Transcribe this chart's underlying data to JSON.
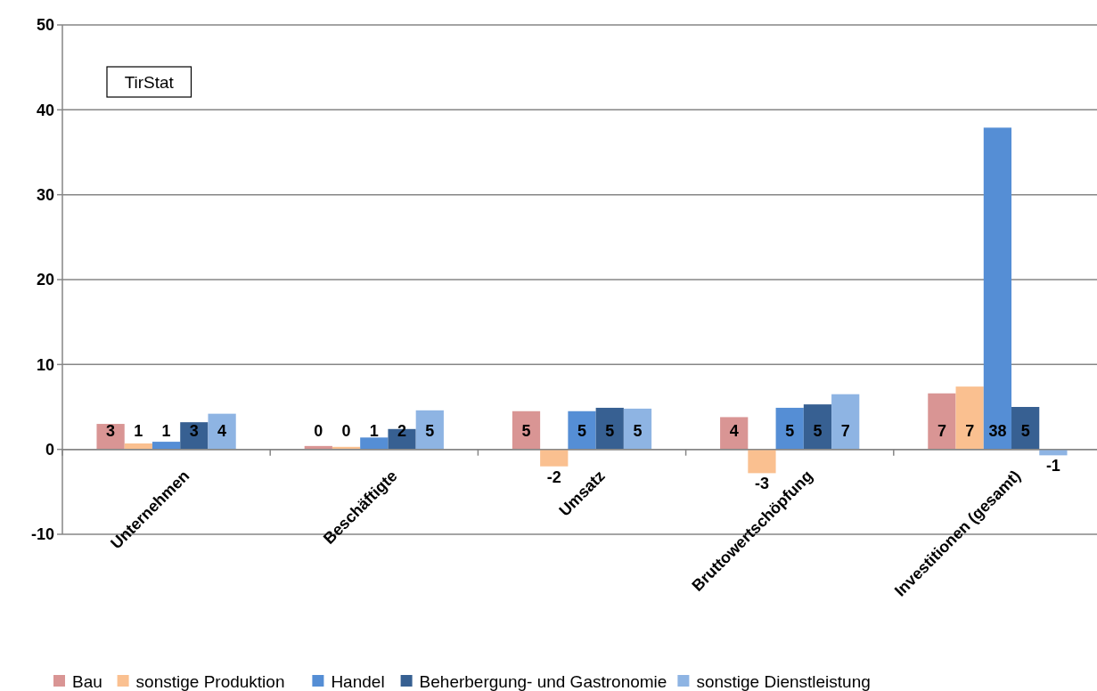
{
  "chart_data": {
    "type": "bar",
    "categories": [
      "Unternehmen",
      "Beschäftigte",
      "Umsatz",
      "Bruttowertschöpfung",
      "Investitionen (gesamt)"
    ],
    "series": [
      {
        "name": "Bau",
        "color": "#d99594",
        "values": [
          3.0,
          0.4,
          4.5,
          3.8,
          6.6
        ],
        "value_labels": [
          "3",
          "0",
          "5",
          "4",
          "7"
        ]
      },
      {
        "name": "sonstige Produktion",
        "color": "#fac090",
        "values": [
          0.7,
          0.3,
          -2.0,
          -2.8,
          7.4
        ],
        "value_labels": [
          "1",
          "0",
          "-2",
          "-3",
          "7"
        ]
      },
      {
        "name": "Handel",
        "color": "#558ed5",
        "values": [
          0.9,
          1.4,
          4.5,
          4.9,
          37.9
        ],
        "value_labels": [
          "1",
          "1",
          "5",
          "5",
          "38"
        ]
      },
      {
        "name": "Beherbergung- und Gastronomie",
        "color": "#376092",
        "values": [
          3.2,
          2.4,
          4.9,
          5.3,
          5.0
        ],
        "value_labels": [
          "3",
          "2",
          "5",
          "5",
          "5"
        ]
      },
      {
        "name": "sonstige Dienstleistung",
        "color": "#8eb4e3",
        "values": [
          4.2,
          4.6,
          4.8,
          6.5,
          -0.7
        ],
        "value_labels": [
          "4",
          "5",
          "5",
          "7",
          "-1"
        ]
      }
    ],
    "ylim": [
      -10,
      50
    ],
    "yticks": [
      -10,
      0,
      10,
      20,
      30,
      40,
      50
    ],
    "grid": "y",
    "legend": "bottom",
    "annotations": [
      "TirStat"
    ]
  }
}
